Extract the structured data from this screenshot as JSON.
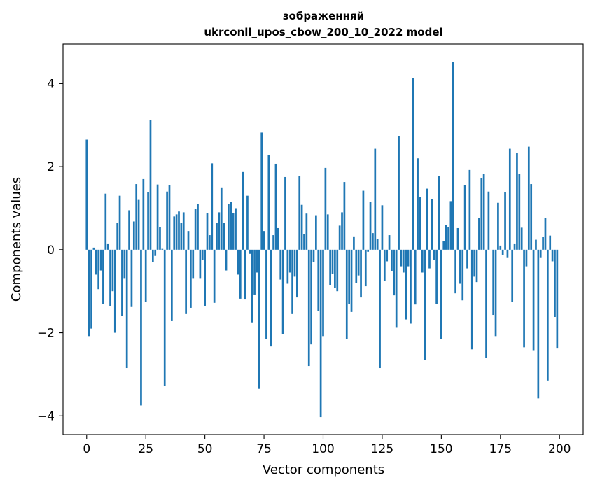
{
  "chart_data": {
    "type": "bar",
    "title_line1": "зображенняй",
    "title_line2": "ukrconll_upos_cbow_200_10_2022 model",
    "xlabel": "Vector components",
    "ylabel": "Components values",
    "xlim": [
      -10,
      210
    ],
    "ylim": [
      -4.45,
      4.95
    ],
    "xticks": [
      0,
      25,
      50,
      75,
      100,
      125,
      150,
      175,
      200
    ],
    "yticks": [
      -4,
      -2,
      0,
      2,
      4
    ],
    "grid": false,
    "bar_color": "#1f77b4",
    "x": [
      0,
      1,
      2,
      3,
      4,
      5,
      6,
      7,
      8,
      9,
      10,
      11,
      12,
      13,
      14,
      15,
      16,
      17,
      18,
      19,
      20,
      21,
      22,
      23,
      24,
      25,
      26,
      27,
      28,
      29,
      30,
      31,
      32,
      33,
      34,
      35,
      36,
      37,
      38,
      39,
      40,
      41,
      42,
      43,
      44,
      45,
      46,
      47,
      48,
      49,
      50,
      51,
      52,
      53,
      54,
      55,
      56,
      57,
      58,
      59,
      60,
      61,
      62,
      63,
      64,
      65,
      66,
      67,
      68,
      69,
      70,
      71,
      72,
      73,
      74,
      75,
      76,
      77,
      78,
      79,
      80,
      81,
      82,
      83,
      84,
      85,
      86,
      87,
      88,
      89,
      90,
      91,
      92,
      93,
      94,
      95,
      96,
      97,
      98,
      99,
      100,
      101,
      102,
      103,
      104,
      105,
      106,
      107,
      108,
      109,
      110,
      111,
      112,
      113,
      114,
      115,
      116,
      117,
      118,
      119,
      120,
      121,
      122,
      123,
      124,
      125,
      126,
      127,
      128,
      129,
      130,
      131,
      132,
      133,
      134,
      135,
      136,
      137,
      138,
      139,
      140,
      141,
      142,
      143,
      144,
      145,
      146,
      147,
      148,
      149,
      150,
      151,
      152,
      153,
      154,
      155,
      156,
      157,
      158,
      159,
      160,
      161,
      162,
      163,
      164,
      165,
      166,
      167,
      168,
      169,
      170,
      171,
      172,
      173,
      174,
      175,
      176,
      177,
      178,
      179,
      180,
      181,
      182,
      183,
      184,
      185,
      186,
      187,
      188,
      189,
      190,
      191,
      192,
      193,
      194,
      195,
      196,
      197,
      198,
      199
    ],
    "values": [
      2.65,
      -2.08,
      -1.9,
      0.05,
      -0.6,
      -0.95,
      -0.5,
      -1.3,
      1.35,
      0.15,
      -1.35,
      -1.0,
      -2.0,
      0.65,
      1.3,
      -1.6,
      -0.7,
      -2.85,
      0.95,
      -1.38,
      0.68,
      1.58,
      1.2,
      -3.75,
      1.7,
      -1.25,
      1.38,
      3.12,
      -0.3,
      -0.15,
      1.57,
      0.55,
      0.02,
      -3.28,
      1.4,
      1.55,
      -1.72,
      0.8,
      0.85,
      0.92,
      0.65,
      0.9,
      -1.55,
      0.45,
      -1.4,
      -0.7,
      0.98,
      1.1,
      -0.7,
      -0.25,
      -1.35,
      0.88,
      0.35,
      2.08,
      -1.28,
      0.65,
      0.9,
      1.5,
      0.65,
      -0.5,
      1.1,
      1.15,
      0.88,
      1.0,
      -0.6,
      -1.18,
      1.87,
      -1.2,
      1.3,
      -0.1,
      -1.75,
      -1.08,
      -0.55,
      -3.35,
      2.82,
      0.45,
      -2.15,
      2.28,
      -2.33,
      0.35,
      2.07,
      0.52,
      -0.72,
      -2.03,
      1.75,
      -0.82,
      -0.55,
      -1.55,
      -0.65,
      -1.15,
      1.77,
      1.08,
      0.38,
      0.87,
      -2.8,
      -2.28,
      -0.3,
      0.83,
      -1.48,
      -4.03,
      -2.08,
      1.97,
      0.85,
      -0.85,
      -0.58,
      -0.92,
      -1.0,
      0.58,
      0.9,
      1.63,
      -2.15,
      -1.3,
      -1.5,
      0.32,
      -0.8,
      -0.62,
      -1.15,
      1.42,
      -0.88,
      -0.05,
      1.15,
      0.4,
      2.43,
      0.25,
      -2.85,
      1.07,
      -0.75,
      -0.28,
      0.35,
      -0.52,
      -1.1,
      -1.88,
      2.73,
      -0.4,
      -0.55,
      -1.68,
      -0.4,
      -1.78,
      4.13,
      -1.32,
      2.2,
      1.27,
      -0.55,
      -2.65,
      1.47,
      -0.45,
      1.22,
      -0.25,
      -1.3,
      1.77,
      -2.15,
      0.2,
      0.6,
      0.55,
      1.17,
      4.52,
      -1.05,
      0.52,
      -0.82,
      -1.22,
      1.55,
      -0.45,
      1.92,
      -2.4,
      -0.65,
      -0.78,
      0.77,
      1.72,
      1.82,
      -2.6,
      1.4,
      0.0,
      -1.57,
      -2.08,
      1.13,
      0.1,
      -0.12,
      1.38,
      -0.2,
      2.43,
      -1.25,
      0.15,
      2.33,
      1.83,
      0.53,
      -2.35,
      -0.4,
      2.48,
      1.58,
      -2.42,
      0.24,
      -3.58,
      -0.2,
      0.31,
      0.77,
      -3.15,
      0.34,
      -0.28,
      -1.62,
      -2.38
    ]
  }
}
